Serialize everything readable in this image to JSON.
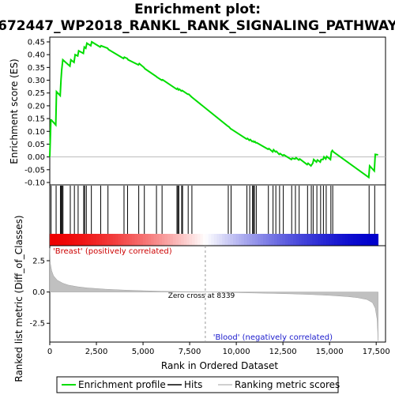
{
  "chart_data": {
    "type": "line",
    "title_line1": "Enrichment plot:",
    "title_line2": "672447_WP2018_RANKL_RANK_SIGNALING_PATHWAY",
    "es_panel": {
      "ylabel": "Enrichment score (ES)",
      "ylim": [
        -0.1,
        0.45
      ],
      "yticks": [
        "0.45",
        "0.40",
        "0.35",
        "0.30",
        "0.25",
        "0.20",
        "0.15",
        "0.10",
        "0.05",
        "0.00",
        "-0.05",
        "-0.10"
      ],
      "ytick_values": [
        0.45,
        0.4,
        0.35,
        0.3,
        0.25,
        0.2,
        0.15,
        0.1,
        0.05,
        0.0,
        -0.05,
        -0.1
      ],
      "line_color": "#00dd00",
      "series": [
        {
          "name": "Enrichment profile",
          "x": [
            0,
            60,
            80,
            320,
            360,
            560,
            600,
            640,
            700,
            1080,
            1130,
            1300,
            1360,
            1500,
            1550,
            1800,
            1850,
            1930,
            1990,
            2200,
            2250,
            2700,
            2750,
            3100,
            3150,
            3950,
            4000,
            4150,
            4200,
            4750,
            4800,
            5050,
            5100,
            5700,
            5750,
            6000,
            6050,
            6800,
            6850,
            6900,
            6950,
            7050,
            7100,
            7400,
            7450,
            7600,
            7650,
            9550,
            9600,
            9700,
            9750,
            10550,
            10600,
            10700,
            10750,
            10850,
            10900,
            10950,
            11000,
            11050,
            11100,
            11700,
            11750,
            11950,
            12000,
            12100,
            12150,
            12300,
            12350,
            12500,
            12550,
            12950,
            13000,
            13150,
            13200,
            13350,
            13400,
            13800,
            13850,
            14000,
            14050,
            14100,
            14150,
            14300,
            14350,
            14500,
            14550,
            14650,
            14700,
            14800,
            14850,
            15050,
            15100,
            15150,
            15200,
            17100,
            17150,
            17400,
            17450,
            17600
          ],
          "y": [
            0.0,
            0.145,
            0.145,
            0.125,
            0.255,
            0.24,
            0.3,
            0.34,
            0.38,
            0.355,
            0.38,
            0.37,
            0.4,
            0.395,
            0.415,
            0.405,
            0.43,
            0.425,
            0.445,
            0.435,
            0.45,
            0.43,
            0.435,
            0.425,
            0.42,
            0.385,
            0.39,
            0.385,
            0.38,
            0.36,
            0.365,
            0.35,
            0.345,
            0.315,
            0.312,
            0.3,
            0.302,
            0.265,
            0.268,
            0.262,
            0.265,
            0.258,
            0.26,
            0.245,
            0.245,
            0.235,
            0.232,
            0.12,
            0.118,
            0.11,
            0.108,
            0.07,
            0.072,
            0.065,
            0.068,
            0.06,
            0.062,
            0.058,
            0.06,
            0.055,
            0.055,
            0.03,
            0.033,
            0.02,
            0.028,
            0.02,
            0.022,
            0.01,
            0.013,
            0.005,
            0.008,
            -0.01,
            -0.005,
            -0.008,
            -0.003,
            -0.012,
            -0.008,
            -0.03,
            -0.025,
            -0.035,
            -0.03,
            -0.025,
            -0.01,
            -0.02,
            -0.012,
            -0.02,
            -0.01,
            -0.01,
            0.0,
            -0.008,
            0.002,
            -0.01,
            0.02,
            0.025,
            0.02,
            -0.08,
            -0.035,
            -0.055,
            0.01,
            0.008
          ]
        }
      ],
      "baseline_color": "#bbbbbb"
    },
    "hits_panel": {
      "hit_positions": [
        70,
        340,
        570,
        620,
        660,
        710,
        1100,
        1320,
        1520,
        1820,
        1870,
        1960,
        2230,
        2730,
        3120,
        3980,
        4170,
        4770,
        5070,
        5720,
        6020,
        6820,
        6870,
        6920,
        7070,
        7120,
        7420,
        7620,
        9570,
        9720,
        10570,
        10720,
        10870,
        10920,
        10970,
        11070,
        11720,
        11970,
        12120,
        12320,
        12520,
        12970,
        13170,
        13370,
        13820,
        14020,
        14120,
        14320,
        14520,
        14670,
        14820,
        15070,
        15170,
        17120,
        17420
      ]
    },
    "heat_strip": {
      "left_color": "#ee0000",
      "right_color": "#0000cc",
      "neutral_color": "#ffffff",
      "zero_cross": 8339
    },
    "metric_panel": {
      "ylabel": "Ranked list metric (Diff_of_Classes)",
      "ylim": [
        -4.0,
        3.7
      ],
      "yticks": [
        "2.5",
        "0.0",
        "-2.5"
      ],
      "ytick_values": [
        2.5,
        0.0,
        -2.5
      ],
      "fill_color": "#c0c0c0",
      "curve": {
        "x": [
          0,
          30,
          100,
          200,
          400,
          700,
          1000,
          1500,
          2000,
          3000,
          4000,
          5000,
          6000,
          7000,
          8000,
          8339,
          9000,
          10000,
          11000,
          12000,
          13000,
          14000,
          15000,
          16000,
          16500,
          17000,
          17300,
          17450,
          17550,
          17600
        ],
        "y": [
          3.5,
          2.3,
          1.7,
          1.3,
          0.95,
          0.7,
          0.55,
          0.42,
          0.33,
          0.22,
          0.15,
          0.1,
          0.06,
          0.03,
          0.01,
          0.0,
          -0.02,
          -0.05,
          -0.08,
          -0.11,
          -0.15,
          -0.2,
          -0.27,
          -0.37,
          -0.45,
          -0.6,
          -0.85,
          -1.3,
          -2.2,
          -3.9
        ]
      },
      "zero_cross_label": "Zero cross at 8339",
      "positive_label": "'Breast' (positively correlated)",
      "negative_label": "'Blood' (negatively correlated)"
    },
    "x_axis": {
      "xlabel": "Rank in Ordered Dataset",
      "xlim": [
        0,
        18000
      ],
      "xticks": [
        "0",
        "2,500",
        "5,000",
        "7,500",
        "10,000",
        "12,500",
        "15,000",
        "17,500"
      ],
      "xtick_values": [
        0,
        2500,
        5000,
        7500,
        10000,
        12500,
        15000,
        17500
      ]
    },
    "legend": {
      "placement": "bottom",
      "items": [
        {
          "label": "Enrichment profile",
          "color": "#00dd00"
        },
        {
          "label": "Hits",
          "color": "#000000"
        },
        {
          "label": "Ranking metric scores",
          "color": "#c0c0c0"
        }
      ]
    }
  }
}
